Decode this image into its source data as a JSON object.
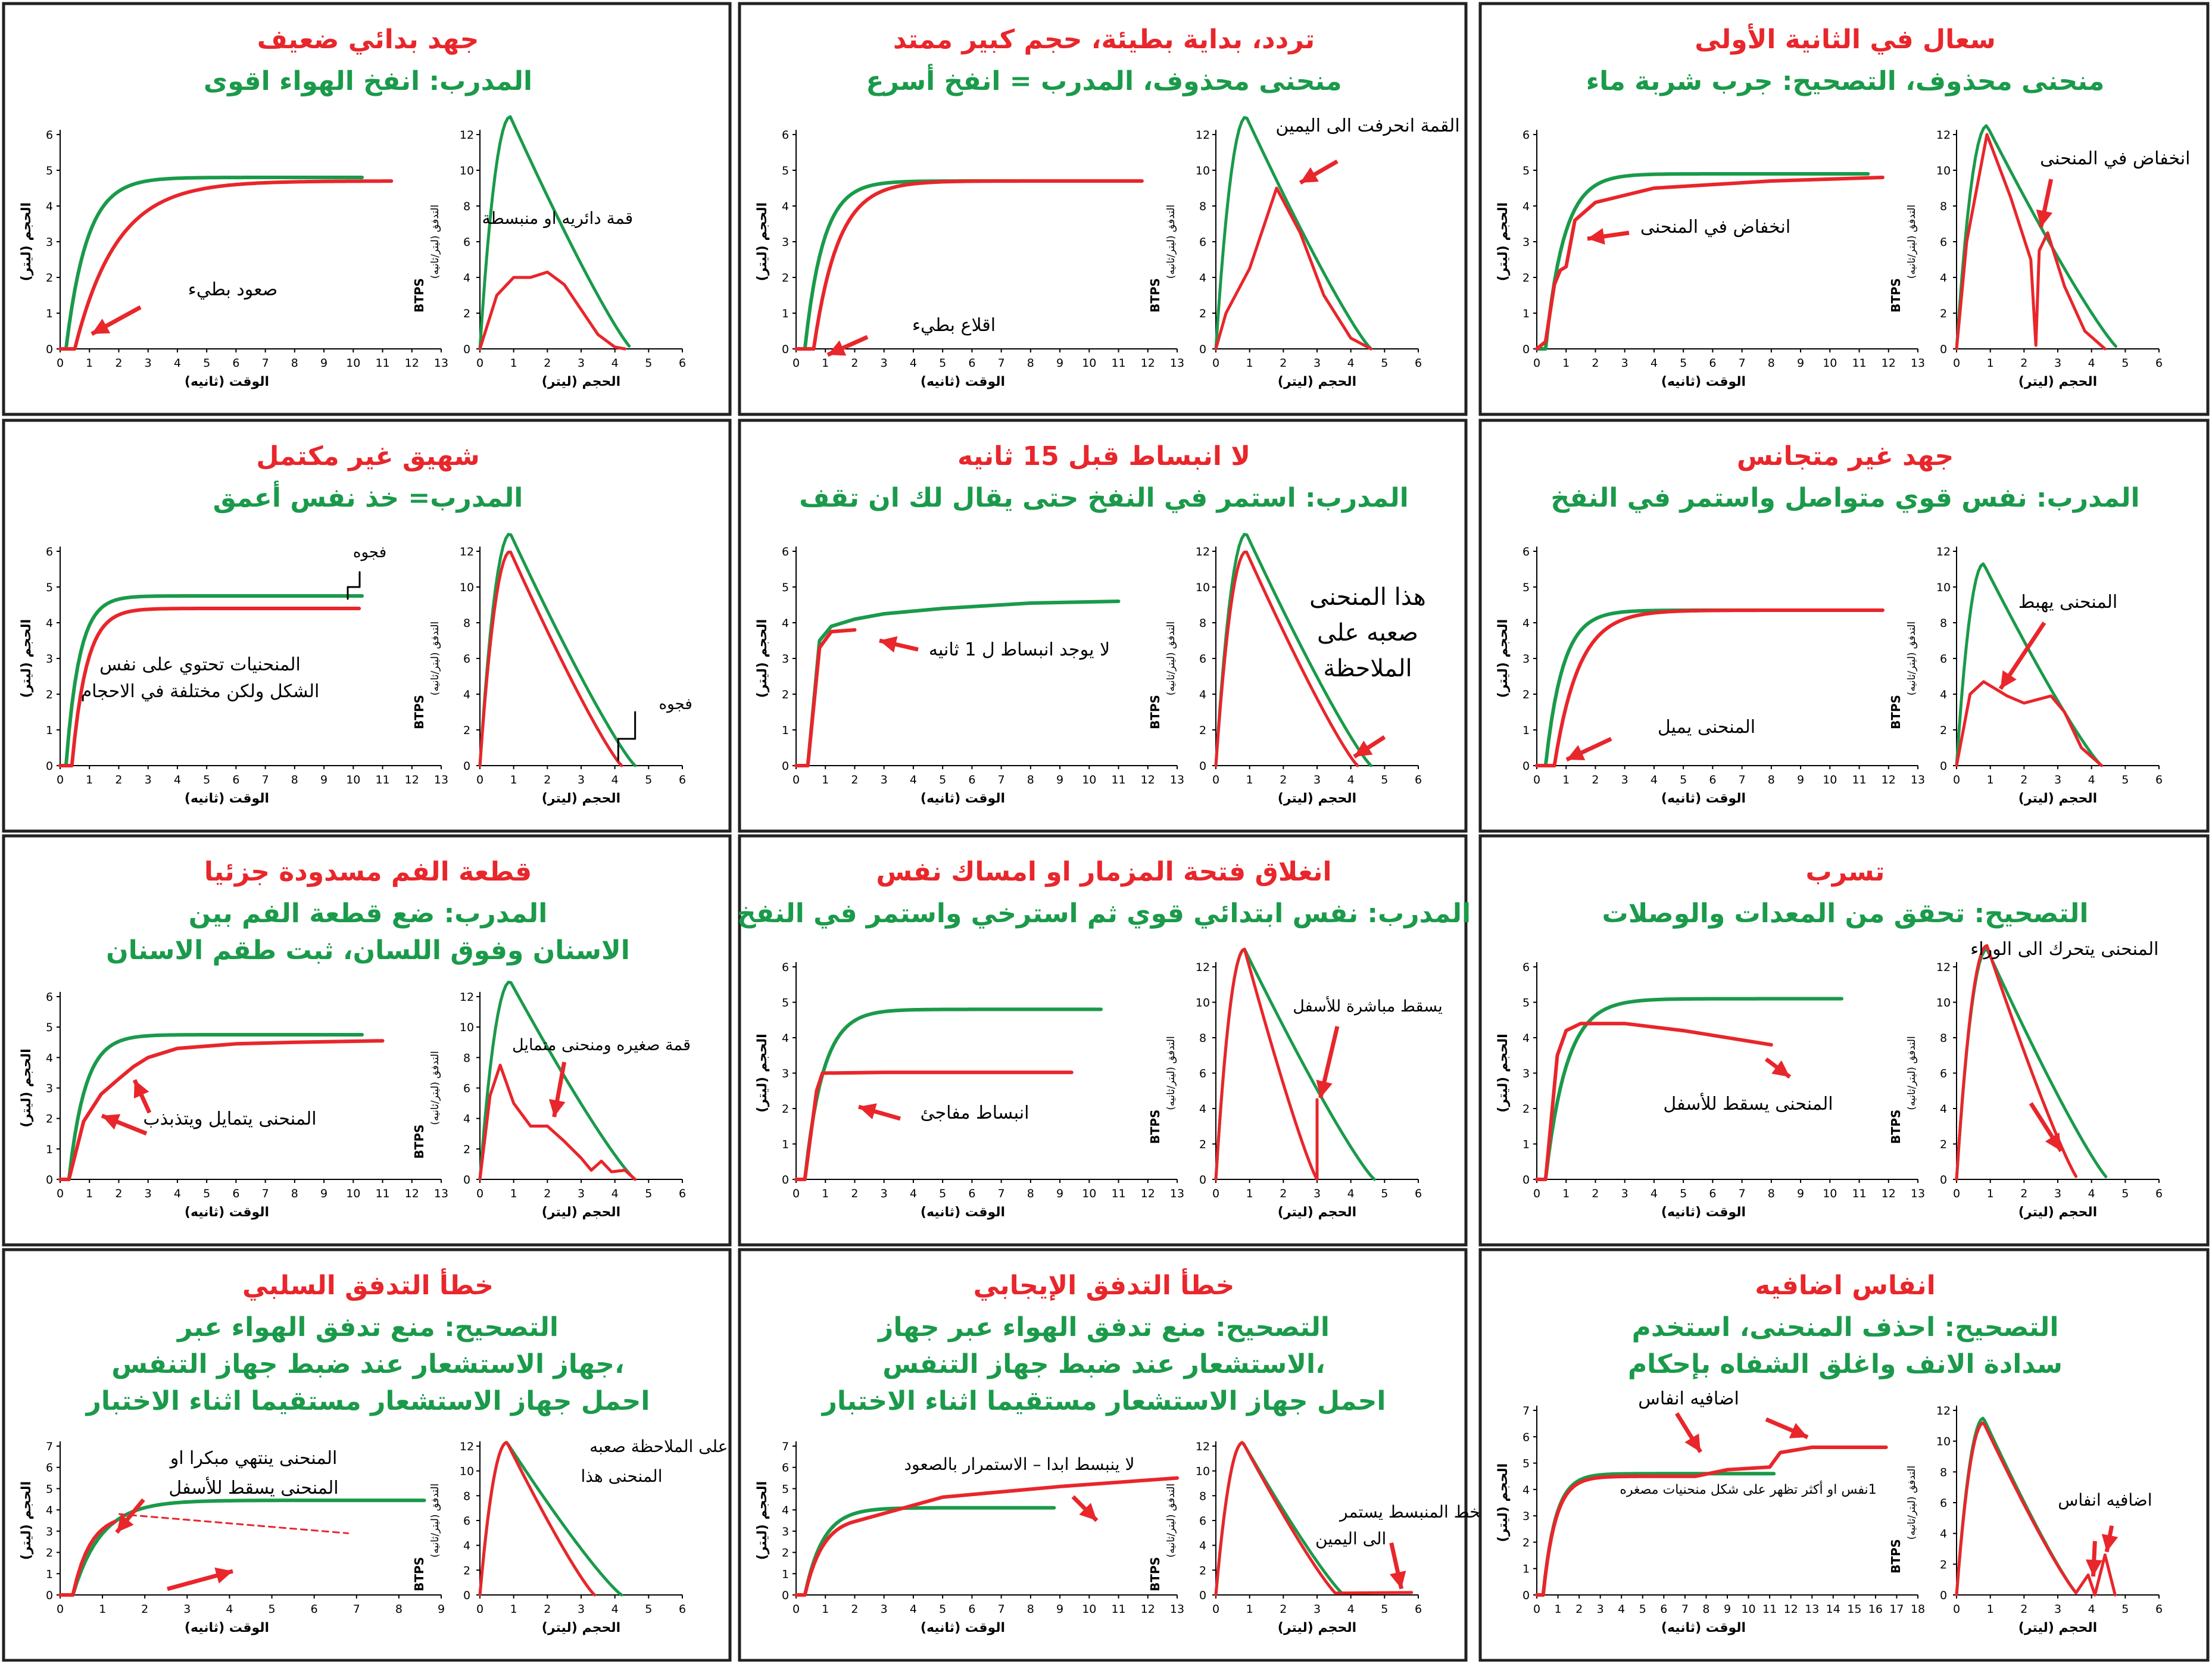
{
  "colors": {
    "expected": "#1a9a4a",
    "actual": "#e8262b",
    "frame": "#222222",
    "axis": "#000000"
  },
  "labels": {
    "vol_axis": "الحجم (ليتر)",
    "time_axis": "الوقت (ثانيه)",
    "flow_axis": "التدفق (ليتر/ثانيه)",
    "flow_btps": "BTPS",
    "fv_x_axis": "الحجم (ليتر)"
  },
  "panels": [
    {
      "id": "poor-effort",
      "title": "جهد بدائي ضعيف",
      "subtitle": [
        "المدرب: انفخ الهواء اقوى"
      ],
      "annotations": [
        "صعود بطيء",
        "قمة دائريه او منبسطة"
      ]
    },
    {
      "id": "hesitation",
      "title": "تردد، بداية بطيئة، حجم كبير ممتد",
      "subtitle": [
        "منحنى محذوف، المدرب = انفخ أسرع"
      ],
      "annotations": [
        "اقلاع بطيء",
        "القمة انحرفت الى اليمين"
      ]
    },
    {
      "id": "cough",
      "title": "سعال في الثانية الأولى",
      "subtitle": [
        "منحنى محذوف، التصحيح: جرب شربة ماء"
      ],
      "annotations": [
        "انخفاض في المنحنى",
        "انخفاض في المنحنى"
      ]
    },
    {
      "id": "incomplete-inhalation",
      "title": "شهيق غير مكتمل",
      "subtitle": [
        "المدرب= خذ نفس أعمق"
      ],
      "annotations": [
        "فجوه",
        "المنحنيات تحتوي على نفس",
        "الشكل ولكن مختلفة في الاحجام",
        "فجوه"
      ]
    },
    {
      "id": "no-plateau",
      "title": "لا انبساط قبل 15 ثانيه",
      "subtitle": [
        "المدرب: استمر في النفخ حتى يقال لك ان تقف"
      ],
      "annotations": [
        "لا يوجد انبساط ل 1 ثانيه",
        "هذا المنحنى",
        "صعبه على",
        "الملاحظة"
      ]
    },
    {
      "id": "variable-effort",
      "title": "جهد غير متجانس",
      "subtitle": [
        "المدرب: نفس قوي متواصل واستمر في النفخ"
      ],
      "annotations": [
        "المنحنى يميل",
        "المنحنى يهبط"
      ]
    },
    {
      "id": "mouthpiece-blocked",
      "title": "قطعة الفم مسدودة جزئيا",
      "subtitle": [
        "المدرب: ضع قطعة الفم بين",
        "الاسنان وفوق اللسان، ثبت طقم الاسنان"
      ],
      "annotations": [
        "المنحنى يتمايل ويتذبذب",
        "قمة صغيره ومنحنى متمايل"
      ]
    },
    {
      "id": "glottis-closure",
      "title": "انغلاق فتحة المزمار او امساك نفس",
      "subtitle": [
        "المدرب: نفس ابتدائي قوي ثم استرخي واستمر في النفخ"
      ],
      "annotations": [
        "انبساط مفاجئ",
        "يسقط مباشرة للأسفل"
      ]
    },
    {
      "id": "leak",
      "title": "تسرب",
      "subtitle": [
        "التصحيح: تحقق من المعدات والوصلات"
      ],
      "annotations": [
        "المنحنى يسقط للأسفل",
        "المنحنى يتحرك الى الوراء"
      ]
    },
    {
      "id": "negative-flow-error",
      "title": "خطأ التدفق السلبي",
      "subtitle": [
        "التصحيح: منع تدفق الهواء عبر",
        "،جهاز الاستشعار عند ضبط جهاز التنفس",
        "احمل جهاز الاستشعار مستقيما اثناء الاختبار"
      ],
      "annotations": [
        "المنحنى ينتهي مبكرا او",
        "المنحنى يسقط للأسفل",
        "على الملاحظة صعبه",
        "المنحنى هذا"
      ]
    },
    {
      "id": "positive-flow-error",
      "title": "خطأ التدفق الإيجابي",
      "subtitle": [
        "التصحيح: منع تدفق الهواء عبر جهاز",
        "،الاستشعار عند ضبط جهاز التنفس",
        "احمل جهاز الاستشعار مستقيما اثناء الاختبار"
      ],
      "annotations": [
        "لا ينبسط ابدا – الاستمرار بالصعود",
        "الخط المنبسط يستمر",
        "الى اليمين"
      ]
    },
    {
      "id": "extra-breaths",
      "title": "انفاس اضافيه",
      "subtitle": [
        "التصحيح: احذف المنحنى، استخدم",
        "سدادة الانف واغلق الشفاه بإحكام"
      ],
      "annotations": [
        "اضافيه انفاس",
        "1نفس او أكثر تظهر على شكل منحنيات مصغره",
        "اضافيه انفاس"
      ]
    }
  ]
}
